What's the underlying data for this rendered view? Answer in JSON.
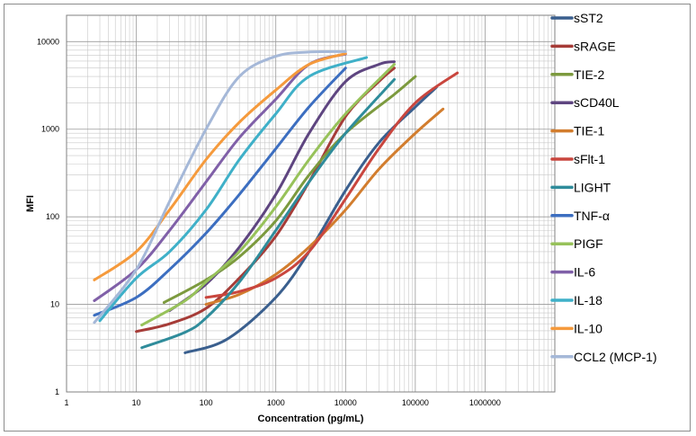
{
  "chart_data": {
    "type": "line",
    "title": "",
    "xlabel": "Concentration (pg/mL)",
    "ylabel": "MFI",
    "x_scale": "log",
    "y_scale": "log",
    "xlim": [
      1,
      10000000
    ],
    "ylim": [
      1,
      20000
    ],
    "x_ticks": [
      "1",
      "10",
      "100",
      "1000",
      "10000",
      "100000",
      "1000000"
    ],
    "y_ticks": [
      "1",
      "10",
      "100",
      "1000",
      "10000"
    ],
    "grid": true,
    "legend_position": "right",
    "series": [
      {
        "name": "sST2",
        "color": "#3a5f8e",
        "points": [
          [
            50,
            2.8
          ],
          [
            200,
            4
          ],
          [
            1000,
            12
          ],
          [
            3000,
            40
          ],
          [
            10000,
            200
          ],
          [
            30000,
            700
          ],
          [
            100000,
            1800
          ],
          [
            200000,
            3000
          ]
        ]
      },
      {
        "name": "sRAGE",
        "color": "#a63c38",
        "points": [
          [
            10,
            4.9
          ],
          [
            30,
            6
          ],
          [
            100,
            9
          ],
          [
            300,
            20
          ],
          [
            1000,
            60
          ],
          [
            3000,
            250
          ],
          [
            10000,
            1400
          ],
          [
            30000,
            3500
          ],
          [
            50000,
            5000
          ]
        ]
      },
      {
        "name": "TIE-2",
        "color": "#7c9a3e",
        "points": [
          [
            25,
            10.5
          ],
          [
            100,
            19
          ],
          [
            300,
            35
          ],
          [
            1000,
            90
          ],
          [
            3000,
            300
          ],
          [
            10000,
            900
          ],
          [
            50000,
            2500
          ],
          [
            100000,
            4000
          ]
        ]
      },
      {
        "name": "sCD40L",
        "color": "#5e4580",
        "points": [
          [
            30,
            8.5
          ],
          [
            100,
            17
          ],
          [
            300,
            45
          ],
          [
            1000,
            180
          ],
          [
            3000,
            900
          ],
          [
            10000,
            3500
          ],
          [
            30000,
            5500
          ],
          [
            50000,
            5900
          ]
        ]
      },
      {
        "name": "TIE-1",
        "color": "#d27d2e",
        "points": [
          [
            100,
            10
          ],
          [
            300,
            13
          ],
          [
            1000,
            22
          ],
          [
            3000,
            45
          ],
          [
            10000,
            120
          ],
          [
            30000,
            350
          ],
          [
            100000,
            900
          ],
          [
            250000,
            1700
          ]
        ]
      },
      {
        "name": "sFlt-1",
        "color": "#c9463e",
        "points": [
          [
            100,
            12
          ],
          [
            300,
            14
          ],
          [
            1000,
            20
          ],
          [
            3000,
            40
          ],
          [
            10000,
            160
          ],
          [
            30000,
            600
          ],
          [
            100000,
            2000
          ],
          [
            400000,
            4400
          ]
        ]
      },
      {
        "name": "LIGHT",
        "color": "#2f8c9b",
        "points": [
          [
            12,
            3.2
          ],
          [
            50,
            4.8
          ],
          [
            100,
            7
          ],
          [
            300,
            18
          ],
          [
            1000,
            70
          ],
          [
            3000,
            250
          ],
          [
            10000,
            900
          ],
          [
            50000,
            3700
          ]
        ]
      },
      {
        "name": "TNF-α",
        "color": "#3c6ec0",
        "points": [
          [
            2.5,
            7.5
          ],
          [
            10,
            12
          ],
          [
            30,
            25
          ],
          [
            100,
            65
          ],
          [
            300,
            180
          ],
          [
            1000,
            600
          ],
          [
            3000,
            1800
          ],
          [
            10000,
            5000
          ]
        ]
      },
      {
        "name": "PIGF",
        "color": "#97c25a",
        "points": [
          [
            12,
            5.8
          ],
          [
            50,
            11
          ],
          [
            100,
            18
          ],
          [
            300,
            40
          ],
          [
            1000,
            130
          ],
          [
            3000,
            450
          ],
          [
            10000,
            1500
          ],
          [
            50000,
            5500
          ]
        ]
      },
      {
        "name": "IL-6",
        "color": "#8060a8",
        "points": [
          [
            2.5,
            11
          ],
          [
            10,
            25
          ],
          [
            30,
            70
          ],
          [
            100,
            250
          ],
          [
            300,
            800
          ],
          [
            1000,
            2200
          ],
          [
            3000,
            5500
          ],
          [
            10000,
            7200
          ]
        ]
      },
      {
        "name": "IL-18",
        "color": "#3fb0c8",
        "points": [
          [
            3,
            6.5
          ],
          [
            10,
            20
          ],
          [
            30,
            40
          ],
          [
            100,
            120
          ],
          [
            300,
            450
          ],
          [
            1000,
            1500
          ],
          [
            3000,
            4000
          ],
          [
            20000,
            6600
          ]
        ]
      },
      {
        "name": "IL-10",
        "color": "#f59a3c",
        "points": [
          [
            2.5,
            19
          ],
          [
            10,
            40
          ],
          [
            30,
            120
          ],
          [
            100,
            450
          ],
          [
            300,
            1200
          ],
          [
            1000,
            2800
          ],
          [
            3000,
            5500
          ],
          [
            10000,
            7300
          ]
        ]
      },
      {
        "name": "CCL2 (MCP-1)",
        "color": "#a5b8d8",
        "points": [
          [
            2.5,
            6.2
          ],
          [
            10,
            25
          ],
          [
            30,
            150
          ],
          [
            100,
            1000
          ],
          [
            300,
            4000
          ],
          [
            1000,
            6800
          ],
          [
            3000,
            7600
          ],
          [
            10000,
            7700
          ]
        ]
      }
    ]
  }
}
